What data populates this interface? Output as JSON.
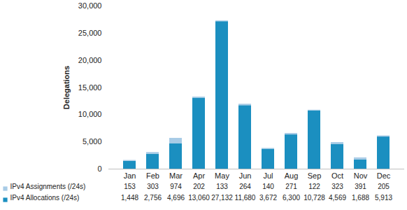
{
  "chart_data": {
    "type": "bar",
    "stacked": true,
    "grid": false,
    "ylabel": "Delegations",
    "categories": [
      "Jan",
      "Feb",
      "Mar",
      "Apr",
      "May",
      "Jun",
      "Jul",
      "Aug",
      "Sep",
      "Oct",
      "Nov",
      "Dec"
    ],
    "series": [
      {
        "name": "IPv4 Assignments (/24s)",
        "color": "#a8cbe6",
        "values": [
          153,
          303,
          974,
          202,
          133,
          264,
          140,
          271,
          122,
          323,
          391,
          205
        ],
        "value_labels": [
          "153",
          "303",
          "974",
          "202",
          "133",
          "264",
          "140",
          "271",
          "122",
          "323",
          "391",
          "205"
        ]
      },
      {
        "name": "IPv4 Allocations (/24s)",
        "color": "#1b8fc0",
        "values": [
          1448,
          2756,
          4696,
          13060,
          27132,
          11680,
          3672,
          6300,
          10728,
          4569,
          1688,
          5913
        ],
        "value_labels": [
          "1,448",
          "2,756",
          "4,696",
          "13,060",
          "27,132",
          "11,680",
          "3,672",
          "6,300",
          "10,728",
          "4,569",
          "1,688",
          "5,913"
        ]
      }
    ],
    "ylim": [
      0,
      30000
    ],
    "yticks": [
      0,
      {
        "value": 5000,
        "label": "5,000"
      },
      {
        "value": 10000,
        "label": "10,000"
      },
      {
        "value": 15000,
        "label": "15,000"
      },
      {
        "value": 20000,
        "label": "20,000"
      },
      {
        "value": 25000,
        "label": "25,000"
      },
      {
        "value": 30000,
        "label": "30,000"
      }
    ]
  }
}
